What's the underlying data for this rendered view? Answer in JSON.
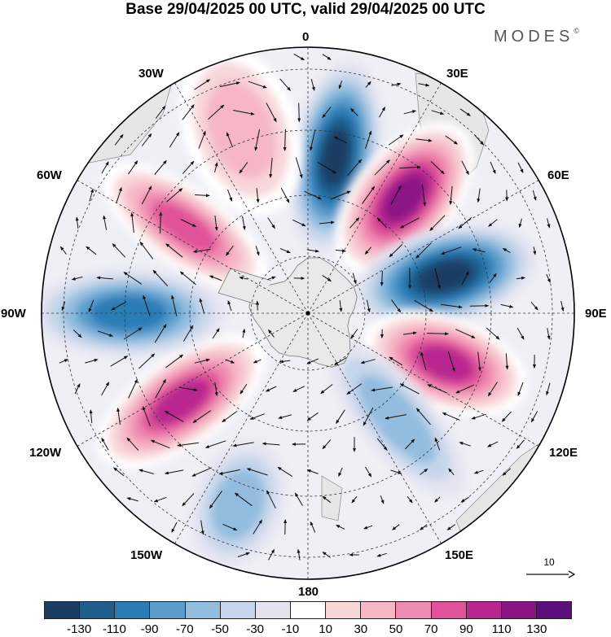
{
  "title": "Base 29/04/2025 00 UTC, valid 29/04/2025 00 UTC",
  "brand": "MODES",
  "brand_mark": "©",
  "longitude_labels": {
    "top": "0",
    "30e": "30E",
    "60e": "60E",
    "90e": "90E",
    "120e": "120E",
    "150e": "150E",
    "bottom": "180",
    "150w": "150W",
    "120w": "120W",
    "90w": "90W",
    "60w": "60W",
    "30w": "30W"
  },
  "reference_vector": {
    "value": "10"
  },
  "colorbar": {
    "colors": [
      "#1c3d63",
      "#1f5d8c",
      "#2b7bb5",
      "#5a9dcc",
      "#93bddf",
      "#c6d6ea",
      "#e4e4f1",
      "#ffffff",
      "#f8d7d9",
      "#f6b6c6",
      "#ef8bb0",
      "#e05299",
      "#b8268f",
      "#8b1486",
      "#5c0f7c"
    ],
    "tick_labels": [
      "-130",
      "-110",
      "-90",
      "-70",
      "-50",
      "-30",
      "-10",
      "10",
      "30",
      "50",
      "70",
      "90",
      "110",
      "130"
    ]
  },
  "chart_data": {
    "type": "heatmap",
    "projection": "polar stereographic, South Pole centered",
    "fields": [
      "filled anomaly contours",
      "wind vectors"
    ],
    "contour_levels": [
      -130,
      -110,
      -90,
      -70,
      -50,
      -30,
      -10,
      10,
      30,
      50,
      70,
      90,
      110,
      130
    ],
    "anomaly_centers": [
      {
        "longitude": 10,
        "sign": "negative",
        "value": -130
      },
      {
        "longitude": 40,
        "sign": "positive",
        "value": 130
      },
      {
        "longitude": 75,
        "sign": "negative",
        "value": -130
      },
      {
        "longitude": 110,
        "sign": "positive",
        "value": 110
      },
      {
        "longitude": 140,
        "sign": "negative",
        "value": -50
      },
      {
        "longitude": -160,
        "sign": "negative",
        "value": -50
      },
      {
        "longitude": -125,
        "sign": "positive",
        "value": 110
      },
      {
        "longitude": -90,
        "sign": "negative",
        "value": -90
      },
      {
        "longitude": -55,
        "sign": "positive",
        "value": 90
      },
      {
        "longitude": -20,
        "sign": "positive",
        "value": 50
      }
    ]
  }
}
